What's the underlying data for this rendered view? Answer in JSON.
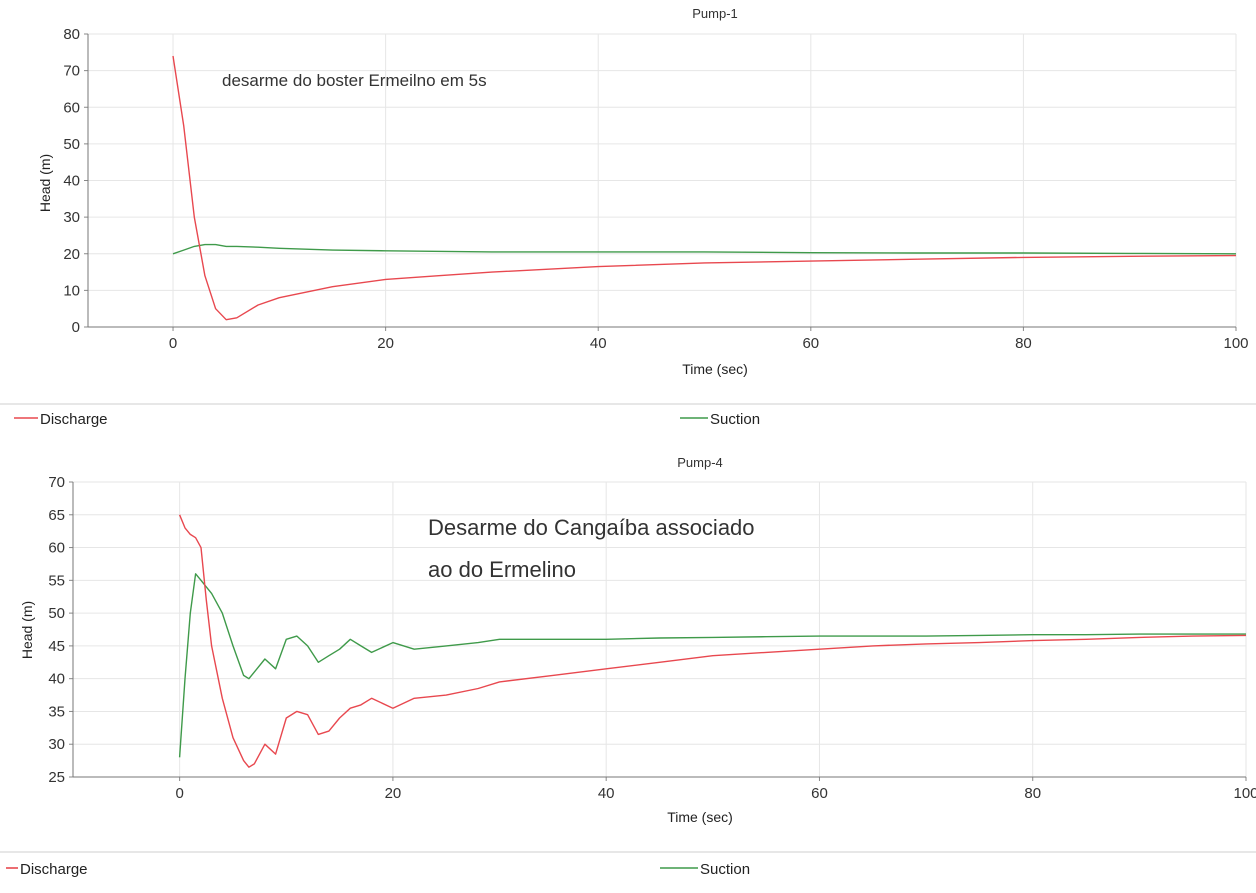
{
  "chart_data": [
    {
      "type": "line",
      "title": "Pump-1",
      "xlabel": "Time (sec)",
      "ylabel": "Head (m)",
      "xlim": [
        -8,
        100
      ],
      "ylim": [
        0,
        80
      ],
      "xticks": [
        0,
        20,
        40,
        60,
        80,
        100
      ],
      "yticks": [
        0,
        10,
        20,
        30,
        40,
        50,
        60,
        70,
        80
      ],
      "grid": true,
      "legend_position": "bottom",
      "annotation": "desarme do boster Ermeilno em 5s",
      "series": [
        {
          "name": "Discharge",
          "color": "#e8484f",
          "x": [
            0,
            1,
            2,
            3,
            4,
            5,
            6,
            8,
            10,
            15,
            20,
            25,
            30,
            40,
            50,
            60,
            70,
            80,
            90,
            100
          ],
          "y": [
            74,
            55,
            30,
            14,
            5,
            2,
            2.5,
            6,
            8,
            11,
            13,
            14,
            15,
            16.5,
            17.5,
            18,
            18.5,
            19,
            19.3,
            19.5
          ]
        },
        {
          "name": "Suction",
          "color": "#3f9a4a",
          "x": [
            0,
            1,
            2,
            3,
            4,
            5,
            6,
            8,
            10,
            15,
            20,
            30,
            40,
            50,
            60,
            70,
            80,
            90,
            100
          ],
          "y": [
            20,
            21,
            22,
            22.5,
            22.5,
            22,
            22,
            21.8,
            21.5,
            21,
            20.8,
            20.5,
            20.5,
            20.5,
            20.3,
            20.2,
            20.2,
            20.1,
            20
          ]
        }
      ]
    },
    {
      "type": "line",
      "title": "Pump-4",
      "xlabel": "Time (sec)",
      "ylabel": "Head (m)",
      "xlim": [
        -10,
        100
      ],
      "ylim": [
        25,
        70
      ],
      "xticks": [
        0,
        20,
        40,
        60,
        80,
        100
      ],
      "yticks": [
        25,
        30,
        35,
        40,
        45,
        50,
        55,
        60,
        65,
        70
      ],
      "grid": true,
      "legend_position": "bottom",
      "annotation": "Desarme do Cangaíba associado ao do Ermelino",
      "series": [
        {
          "name": "Discharge",
          "color": "#e8484f",
          "x": [
            0,
            0.5,
            1,
            1.5,
            2,
            2.5,
            3,
            4,
            5,
            6,
            6.5,
            7,
            8,
            9,
            10,
            11,
            12,
            13,
            14,
            15,
            16,
            17,
            18,
            20,
            22,
            25,
            28,
            30,
            35,
            40,
            45,
            50,
            55,
            60,
            65,
            70,
            75,
            80,
            85,
            90,
            95,
            100
          ],
          "y": [
            65,
            63,
            62,
            61.5,
            60,
            52,
            45,
            37,
            31,
            27.5,
            26.5,
            27,
            30,
            28.5,
            34,
            35,
            34.5,
            31.5,
            32,
            34,
            35.5,
            36,
            37,
            35.5,
            37,
            37.5,
            38.5,
            39.5,
            40.5,
            41.5,
            42.5,
            43.5,
            44,
            44.5,
            45,
            45.3,
            45.5,
            45.8,
            46,
            46.3,
            46.5,
            46.6
          ]
        },
        {
          "name": "Suction",
          "color": "#3f9a4a",
          "x": [
            0,
            0.5,
            1,
            1.5,
            2,
            2.5,
            3,
            4,
            5,
            6,
            6.5,
            7,
            8,
            9,
            10,
            11,
            12,
            13,
            14,
            15,
            16,
            17,
            18,
            20,
            22,
            25,
            28,
            30,
            35,
            40,
            45,
            50,
            55,
            60,
            65,
            70,
            75,
            80,
            85,
            90,
            95,
            100
          ],
          "y": [
            28,
            40,
            50,
            56,
            55,
            54,
            53,
            50,
            45,
            40.5,
            40,
            41,
            43,
            41.5,
            46,
            46.5,
            45,
            42.5,
            43.5,
            44.5,
            46,
            45,
            44,
            45.5,
            44.5,
            45,
            45.5,
            46,
            46,
            46,
            46.2,
            46.3,
            46.4,
            46.5,
            46.5,
            46.5,
            46.6,
            46.7,
            46.7,
            46.8,
            46.8,
            46.8
          ]
        }
      ]
    }
  ]
}
